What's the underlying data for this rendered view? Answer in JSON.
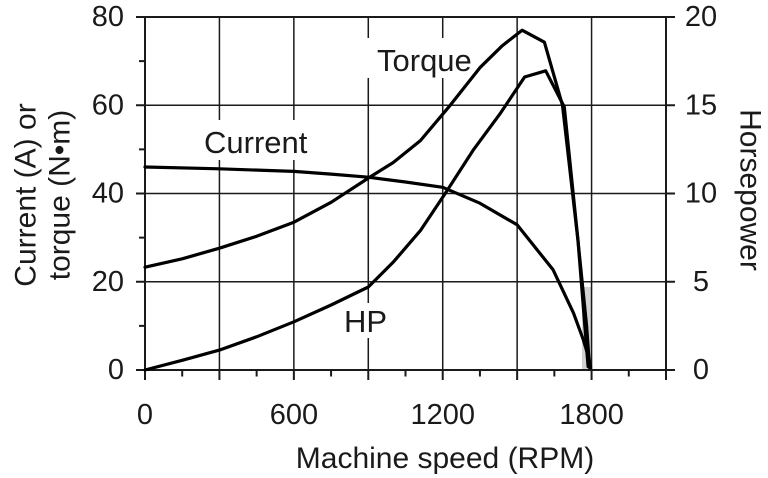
{
  "figure": {
    "background_color": "#ffffff",
    "line_color": "#000000",
    "shaded_strip_color": "#d2d2d2",
    "curve_labels": {
      "torque": "Torque",
      "current": "Current",
      "hp": "HP"
    }
  },
  "axes": {
    "left": {
      "title_line1": "Current (A) or",
      "title_line2": "torque (N•m)",
      "ticks": [
        "80",
        "60",
        "40",
        "20",
        "0"
      ]
    },
    "right": {
      "title": "Horsepower",
      "ticks": [
        "20",
        "15",
        "10",
        "5",
        "0"
      ]
    },
    "bottom": {
      "title": "Machine speed (RPM)",
      "ticks": [
        "0",
        "600",
        "1200",
        "1800"
      ]
    }
  },
  "chart_data": {
    "type": "line",
    "title": "",
    "xlabel": "Machine speed (RPM)",
    "ylabel_left": "Current (A) or torque (N•m)",
    "ylabel_right": "Horsepower",
    "x_range_rpm": [
      0,
      2100
    ],
    "x_labeled_ticks": [
      0,
      600,
      1200,
      1800
    ],
    "x_grid_step": 300,
    "x_minor_tick_step": 150,
    "left_axis_range": [
      0,
      80
    ],
    "left_axis_ticks": [
      0,
      20,
      40,
      60,
      80
    ],
    "left_axis_minor_ticks": [
      10,
      30,
      50,
      70
    ],
    "right_axis_range": [
      0,
      20
    ],
    "right_axis_ticks": [
      0,
      5,
      10,
      15,
      20
    ],
    "grid": true,
    "legend": "inline-labels",
    "series": [
      {
        "name": "Torque",
        "axis": "left",
        "units": "N•m",
        "points": [
          [
            0,
            23.3
          ],
          [
            150,
            25.2
          ],
          [
            300,
            27.6
          ],
          [
            450,
            30.3
          ],
          [
            600,
            33.5
          ],
          [
            750,
            38.0
          ],
          [
            900,
            43.5
          ],
          [
            1000,
            47.0
          ],
          [
            1110,
            52.0
          ],
          [
            1230,
            60.0
          ],
          [
            1350,
            68.5
          ],
          [
            1440,
            73.5
          ],
          [
            1520,
            77.0
          ],
          [
            1610,
            74.3
          ],
          [
            1683,
            60.0
          ],
          [
            1745,
            29.5
          ],
          [
            1780,
            10.0
          ],
          [
            1792,
            0.5
          ]
        ]
      },
      {
        "name": "Current",
        "axis": "left",
        "units": "A",
        "points": [
          [
            0,
            46.0
          ],
          [
            300,
            45.6
          ],
          [
            600,
            45.0
          ],
          [
            750,
            44.4
          ],
          [
            900,
            43.7
          ],
          [
            1050,
            42.6
          ],
          [
            1200,
            41.4
          ],
          [
            1350,
            37.8
          ],
          [
            1500,
            32.9
          ],
          [
            1645,
            22.7
          ],
          [
            1727,
            12.9
          ],
          [
            1767,
            6.8
          ],
          [
            1790,
            2.5
          ],
          [
            1796,
            0.5
          ]
        ]
      },
      {
        "name": "HP",
        "axis": "right",
        "units": "hp",
        "points": [
          [
            0,
            0
          ],
          [
            150,
            0.55
          ],
          [
            300,
            1.13
          ],
          [
            450,
            1.88
          ],
          [
            600,
            2.73
          ],
          [
            750,
            3.68
          ],
          [
            900,
            4.7
          ],
          [
            1000,
            6.1
          ],
          [
            1110,
            7.9
          ],
          [
            1210,
            10.0
          ],
          [
            1325,
            12.5
          ],
          [
            1430,
            14.5
          ],
          [
            1530,
            16.6
          ],
          [
            1615,
            16.95
          ],
          [
            1690,
            14.9
          ],
          [
            1745,
            7.4
          ],
          [
            1786,
            0.2
          ]
        ]
      }
    ]
  }
}
